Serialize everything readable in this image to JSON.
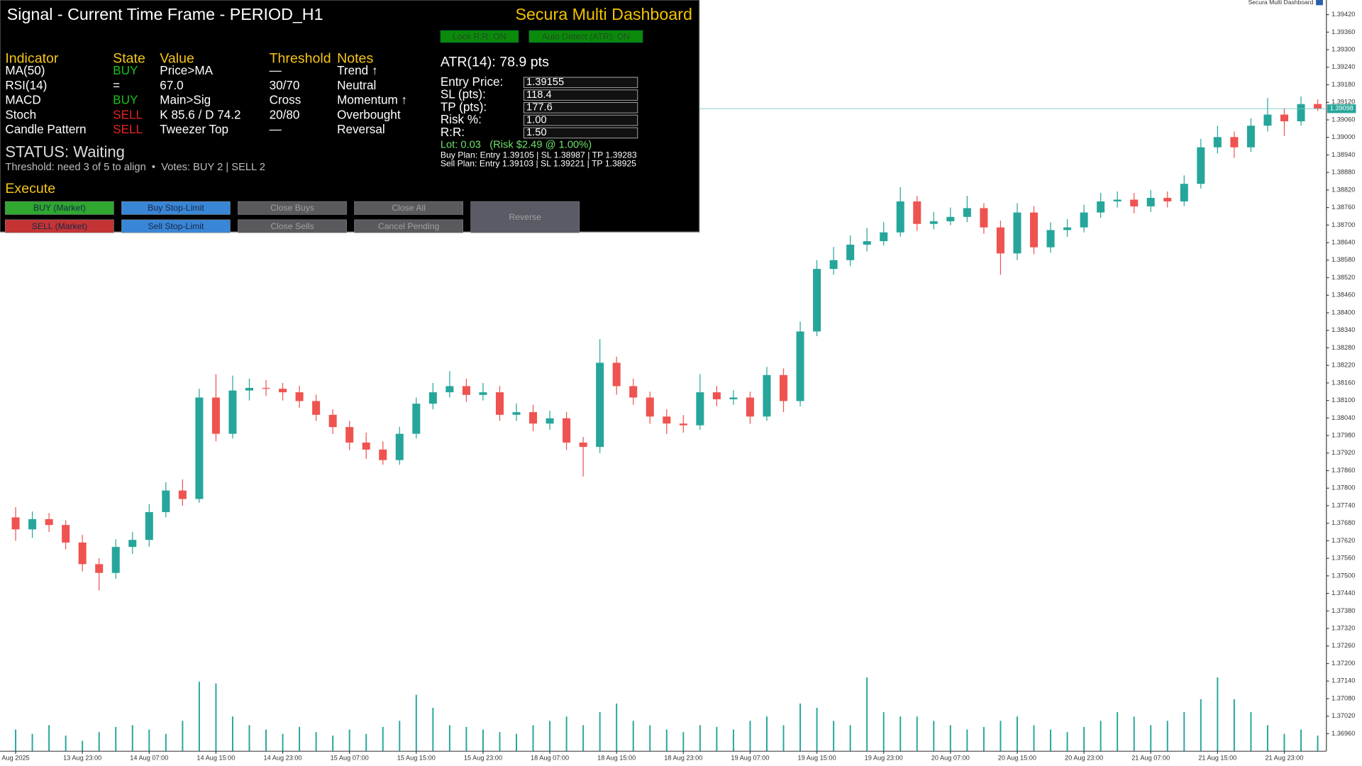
{
  "chart_data": {
    "type": "candlestick",
    "header": "Secura Multi Dashboard",
    "categories": [
      "Aug 2025",
      null,
      null,
      null,
      "13 Aug 23:00",
      null,
      null,
      null,
      "14 Aug 07:00",
      null,
      null,
      null,
      "14 Aug 15:00",
      null,
      null,
      null,
      "14 Aug 23:00",
      null,
      null,
      null,
      "15 Aug 07:00",
      null,
      null,
      null,
      "15 Aug 15:00",
      null,
      null,
      null,
      "15 Aug 23:00",
      null,
      null,
      null,
      "18 Aug 07:00",
      null,
      null,
      null,
      "18 Aug 15:00",
      null,
      null,
      null,
      "18 Aug 23:00",
      null,
      null,
      null,
      "19 Aug 07:00",
      null,
      null,
      null,
      "19 Aug 15:00",
      null,
      null,
      null,
      "19 Aug 23:00",
      null,
      null,
      null,
      "20 Aug 07:00",
      null,
      null,
      null,
      "20 Aug 15:00",
      null,
      null,
      null,
      "20 Aug 23:00",
      null,
      null,
      null,
      "21 Aug 07:00",
      null,
      null,
      null,
      "21 Aug 15:00",
      null,
      null,
      null,
      "21 Aug 23:00",
      null,
      null
    ],
    "open": [
      1.377,
      1.37659,
      1.37694,
      1.37674,
      1.37614,
      1.3754,
      1.3751,
      1.37599,
      1.37623,
      1.37718,
      1.37792,
      1.37763,
      1.3811,
      1.37986,
      1.38134,
      1.38143,
      1.3814,
      1.38128,
      1.38098,
      1.38051,
      1.38009,
      1.37956,
      1.37932,
      1.37896,
      1.37986,
      1.38089,
      1.38128,
      1.38149,
      1.38119,
      1.38128,
      1.38051,
      1.3806,
      1.38021,
      1.38039,
      1.37956,
      1.37941,
      1.38229,
      1.38149,
      1.3811,
      1.38045,
      1.38021,
      1.38015,
      1.38128,
      1.38104,
      1.3811,
      1.38045,
      1.38187,
      1.38098,
      1.38336,
      1.3855,
      1.3858,
      1.38633,
      1.38645,
      1.38675,
      1.38781,
      1.38704,
      1.38713,
      1.38728,
      1.38758,
      1.38692,
      1.38603,
      1.38743,
      1.38624,
      1.38683,
      1.38692,
      1.38743,
      1.38781,
      1.38787,
      1.38764,
      1.38793,
      1.38781,
      1.38841,
      1.38966,
      1.39001,
      1.38966,
      1.3904,
      1.39078,
      1.39055,
      1.39114
    ],
    "high": [
      1.37735,
      1.3772,
      1.37715,
      1.3769,
      1.3764,
      1.3756,
      1.37625,
      1.3765,
      1.37745,
      1.3782,
      1.3783,
      1.3814,
      1.3819,
      1.38185,
      1.38175,
      1.3817,
      1.3816,
      1.3815,
      1.3812,
      1.3807,
      1.3803,
      1.3799,
      1.3796,
      1.3801,
      1.3811,
      1.3816,
      1.382,
      1.38175,
      1.3816,
      1.3815,
      1.3809,
      1.38085,
      1.38065,
      1.3806,
      1.37975,
      1.3831,
      1.3825,
      1.38175,
      1.3813,
      1.3807,
      1.3805,
      1.3819,
      1.3815,
      1.38135,
      1.3813,
      1.38215,
      1.3821,
      1.3837,
      1.3858,
      1.38625,
      1.38665,
      1.3869,
      1.3871,
      1.3883,
      1.388,
      1.38745,
      1.3876,
      1.388,
      1.38775,
      1.38715,
      1.38775,
      1.38765,
      1.3871,
      1.3872,
      1.3877,
      1.3881,
      1.38815,
      1.3881,
      1.3882,
      1.38815,
      1.3887,
      1.38995,
      1.3904,
      1.3902,
      1.39065,
      1.39135,
      1.391,
      1.3914,
      1.3913
    ],
    "low": [
      1.3762,
      1.3763,
      1.3765,
      1.3759,
      1.37515,
      1.3745,
      1.3749,
      1.37575,
      1.376,
      1.377,
      1.3774,
      1.3775,
      1.3796,
      1.3797,
      1.381,
      1.38115,
      1.381,
      1.38075,
      1.3803,
      1.37985,
      1.3793,
      1.379,
      1.3788,
      1.3788,
      1.3797,
      1.3807,
      1.3811,
      1.38095,
      1.381,
      1.3803,
      1.3803,
      1.37995,
      1.38,
      1.3793,
      1.3784,
      1.3792,
      1.3812,
      1.38085,
      1.3802,
      1.37985,
      1.3799,
      1.38,
      1.3808,
      1.38085,
      1.3802,
      1.3803,
      1.3806,
      1.3808,
      1.3832,
      1.3853,
      1.3856,
      1.3861,
      1.3863,
      1.3866,
      1.3868,
      1.38685,
      1.387,
      1.3871,
      1.3867,
      1.3853,
      1.3858,
      1.386,
      1.38605,
      1.3866,
      1.38675,
      1.38725,
      1.3876,
      1.3874,
      1.38745,
      1.3876,
      1.38765,
      1.38825,
      1.38945,
      1.3893,
      1.3895,
      1.3902,
      1.39005,
      1.3904,
      1.3909
    ],
    "close": [
      1.37659,
      1.37694,
      1.37674,
      1.37614,
      1.3754,
      1.3751,
      1.37599,
      1.37623,
      1.37718,
      1.37792,
      1.37763,
      1.3811,
      1.37986,
      1.38134,
      1.38143,
      1.3814,
      1.38128,
      1.38098,
      1.38051,
      1.38009,
      1.37956,
      1.37932,
      1.37896,
      1.37986,
      1.38089,
      1.38128,
      1.38149,
      1.38119,
      1.38128,
      1.38051,
      1.3806,
      1.38021,
      1.38039,
      1.37956,
      1.37941,
      1.38229,
      1.38149,
      1.3811,
      1.38045,
      1.38021,
      1.38015,
      1.38128,
      1.38104,
      1.3811,
      1.38045,
      1.38187,
      1.38098,
      1.38336,
      1.3855,
      1.3858,
      1.38633,
      1.38645,
      1.38675,
      1.38781,
      1.38704,
      1.38713,
      1.38728,
      1.38758,
      1.38692,
      1.38603,
      1.38743,
      1.38624,
      1.38683,
      1.38692,
      1.38743,
      1.38781,
      1.38787,
      1.38764,
      1.38793,
      1.38781,
      1.38841,
      1.38966,
      1.39001,
      1.38966,
      1.3904,
      1.39078,
      1.39055,
      1.39114,
      1.39098
    ],
    "volume": [
      25,
      20,
      30,
      18,
      12,
      22,
      28,
      30,
      25,
      20,
      35,
      80,
      78,
      40,
      30,
      25,
      20,
      28,
      22,
      18,
      25,
      20,
      28,
      35,
      65,
      50,
      30,
      28,
      25,
      22,
      20,
      30,
      35,
      40,
      30,
      45,
      55,
      35,
      30,
      25,
      22,
      30,
      28,
      25,
      35,
      40,
      30,
      55,
      50,
      35,
      30,
      85,
      45,
      40,
      40,
      35,
      30,
      25,
      28,
      35,
      40,
      30,
      25,
      22,
      28,
      35,
      45,
      40,
      30,
      35,
      45,
      60,
      85,
      60,
      45,
      30,
      20,
      25,
      18
    ],
    "volume_lim": [
      0,
      100
    ],
    "up_color": "#26a69a",
    "down_color": "#ef5350",
    "volume_color": "#26a69a",
    "ylim": [
      1.369,
      1.3947
    ],
    "yticks": [
      {
        "value": 1.3942,
        "label": "1.39420"
      },
      {
        "value": 1.3936,
        "label": "1.39360"
      },
      {
        "value": 1.393,
        "label": "1.39300"
      },
      {
        "value": 1.3924,
        "label": "1.39240"
      },
      {
        "value": 1.3918,
        "label": "1.39180"
      },
      {
        "value": 1.3912,
        "label": "1.39120"
      },
      {
        "value": 1.3906,
        "label": "1.39060"
      },
      {
        "value": 1.39,
        "label": "1.39000"
      },
      {
        "value": 1.3894,
        "label": "1.38940"
      },
      {
        "value": 1.3888,
        "label": "1.38880"
      },
      {
        "value": 1.3882,
        "label": "1.38820"
      },
      {
        "value": 1.3876,
        "label": "1.38760"
      },
      {
        "value": 1.387,
        "label": "1.38700"
      },
      {
        "value": 1.3864,
        "label": "1.38640"
      },
      {
        "value": 1.3858,
        "label": "1.38580"
      },
      {
        "value": 1.3852,
        "label": "1.38520"
      },
      {
        "value": 1.3846,
        "label": "1.38460"
      },
      {
        "value": 1.384,
        "label": "1.38400"
      },
      {
        "value": 1.3834,
        "label": "1.38340"
      },
      {
        "value": 1.3828,
        "label": "1.38280"
      },
      {
        "value": 1.3822,
        "label": "1.38220"
      },
      {
        "value": 1.3816,
        "label": "1.38160"
      },
      {
        "value": 1.381,
        "label": "1.38100"
      },
      {
        "value": 1.3804,
        "label": "1.38040"
      },
      {
        "value": 1.3798,
        "label": "1.37980"
      },
      {
        "value": 1.3792,
        "label": "1.37920"
      },
      {
        "value": 1.3786,
        "label": "1.37860"
      },
      {
        "value": 1.378,
        "label": "1.37800"
      },
      {
        "value": 1.3774,
        "label": "1.37740"
      },
      {
        "value": 1.3768,
        "label": "1.37680"
      },
      {
        "value": 1.3762,
        "label": "1.37620"
      },
      {
        "value": 1.3756,
        "label": "1.37560"
      },
      {
        "value": 1.375,
        "label": "1.37500"
      },
      {
        "value": 1.3744,
        "label": "1.37440"
      },
      {
        "value": 1.3738,
        "label": "1.37380"
      },
      {
        "value": 1.3732,
        "label": "1.37320"
      },
      {
        "value": 1.3726,
        "label": "1.37260"
      },
      {
        "value": 1.372,
        "label": "1.37200"
      },
      {
        "value": 1.3714,
        "label": "1.37140"
      },
      {
        "value": 1.3708,
        "label": "1.37080"
      },
      {
        "value": 1.3702,
        "label": "1.37020"
      },
      {
        "value": 1.3696,
        "label": "1.36960"
      }
    ],
    "current_price": {
      "value": 1.39098,
      "label": "1.39098"
    },
    "current_color": "#26a69a"
  },
  "dashboard": {
    "title": "Signal - Current Time Frame - PERIOD_H1",
    "brand": "Secura Multi Dashboard",
    "toggles": [
      "Lock R:R: ON",
      "Auto Detect (ATR): ON"
    ],
    "table": {
      "headers": [
        "Indicator",
        "State",
        "Value",
        "Threshold",
        "Notes"
      ],
      "rows": [
        [
          "MA(50)",
          "BUY",
          "Price>MA",
          "—",
          "Trend ↑"
        ],
        [
          "RSI(14)",
          "=",
          "67.0",
          "30/70",
          "Neutral"
        ],
        [
          "MACD",
          "BUY",
          "Main>Sig",
          "Cross",
          "Momentum ↑"
        ],
        [
          "Stoch",
          "SELL",
          "K 85.6 / D 74.2",
          "20/80",
          "Overbought"
        ],
        [
          "Candle Pattern",
          "SELL",
          "Tweezer Top",
          "—",
          "Reversal"
        ]
      ],
      "state_colors": [
        "#19c219",
        "#ffffff",
        "#19c219",
        "#e32222",
        "#e32222"
      ]
    },
    "status": "STATUS: Waiting",
    "threshold_note": "Threshold: need 3 of 5 to align  •  Votes: BUY 2 | SELL 2",
    "execute": "Execute",
    "buttons": [
      {
        "label": "BUY (Market)",
        "color": "#2ea82e",
        "text_color": "#16284a"
      },
      {
        "label": "Buy Stop-Limit",
        "color": "#3a86d6",
        "text_color": "#16284a"
      },
      {
        "label": "Close Buys",
        "color": "#5a5a5e",
        "text_color": "#a0a0a0"
      },
      {
        "label": "Close All",
        "color": "#5a5a5e",
        "text_color": "#a0a0a0"
      },
      {
        "label": "SELL (Market)",
        "color": "#c43434",
        "text_color": "#16284a"
      },
      {
        "label": "Sell Stop-Limit",
        "color": "#3a86d6",
        "text_color": "#16284a"
      },
      {
        "label": "Close Sells",
        "color": "#5a5a5e",
        "text_color": "#a0a0a0"
      },
      {
        "label": "Cancel Pending",
        "color": "#5a5a5e",
        "text_color": "#a0a0a0"
      },
      {
        "label": "Reverse",
        "color": "#5b5b66",
        "text_color": "#a0a0a0"
      }
    ],
    "atr": "ATR(14): 78.9 pts",
    "fields": [
      {
        "label": "Entry Price:",
        "value": "1.39155"
      },
      {
        "label": "SL (pts):",
        "value": "118.4"
      },
      {
        "label": "TP (pts):",
        "value": "177.6"
      },
      {
        "label": "Risk %:",
        "value": "1.00"
      },
      {
        "label": "R:R:",
        "value": "1.50"
      }
    ],
    "lot": "Lot: 0.03   (Risk $2.49 @ 1.00%)",
    "buy_plan": "Buy Plan: Entry 1.39105 | SL 1.38987 | TP 1.39283",
    "sell_plan": "Sell Plan: Entry 1.39103 | SL 1.39221 | TP 1.38925"
  }
}
